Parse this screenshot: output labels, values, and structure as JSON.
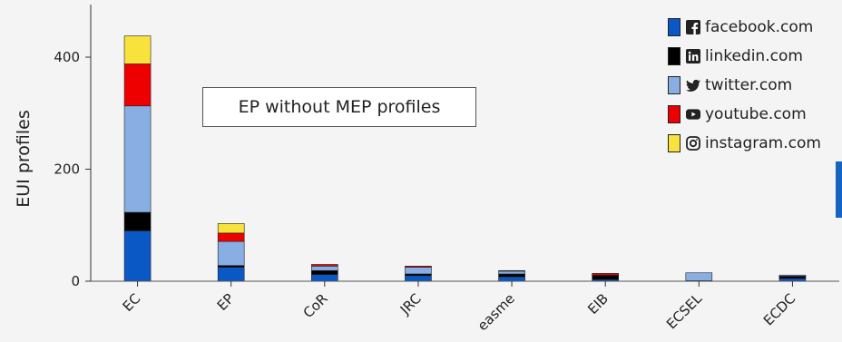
{
  "chart_data": {
    "type": "bar",
    "stacked": true,
    "title": "",
    "ylabel": "EUI profiles",
    "xlabel": "",
    "ylim": [
      0,
      460
    ],
    "yticks": [
      0,
      200,
      400
    ],
    "grid": false,
    "legend_position": "top-right",
    "annotation": "EP without MEP profiles",
    "categories": [
      "EC",
      "EP",
      "CoR",
      "JRC",
      "easme",
      "EIB",
      "ECSEL",
      "ECDC"
    ],
    "series": [
      {
        "name": "facebook.com",
        "icon": "facebook-icon",
        "color": "#0a58c6",
        "values": [
          90,
          25,
          12,
          10,
          8,
          3,
          1,
          5
        ]
      },
      {
        "name": "linkedin.com",
        "icon": "linkedin-icon",
        "color": "#000000",
        "values": [
          33,
          3,
          7,
          3,
          5,
          7,
          0,
          4
        ]
      },
      {
        "name": "twitter.com",
        "icon": "twitter-icon",
        "color": "#88aee3",
        "values": [
          190,
          43,
          8,
          12,
          5,
          1,
          14,
          2
        ]
      },
      {
        "name": "youtube.com",
        "icon": "youtube-icon",
        "color": "#ee0000",
        "values": [
          75,
          15,
          3,
          2,
          1,
          3,
          0,
          0
        ]
      },
      {
        "name": "instagram.com",
        "icon": "instagram-icon",
        "color": "#f8e23c",
        "values": [
          50,
          17,
          0,
          0,
          0,
          0,
          0,
          0
        ]
      }
    ]
  }
}
